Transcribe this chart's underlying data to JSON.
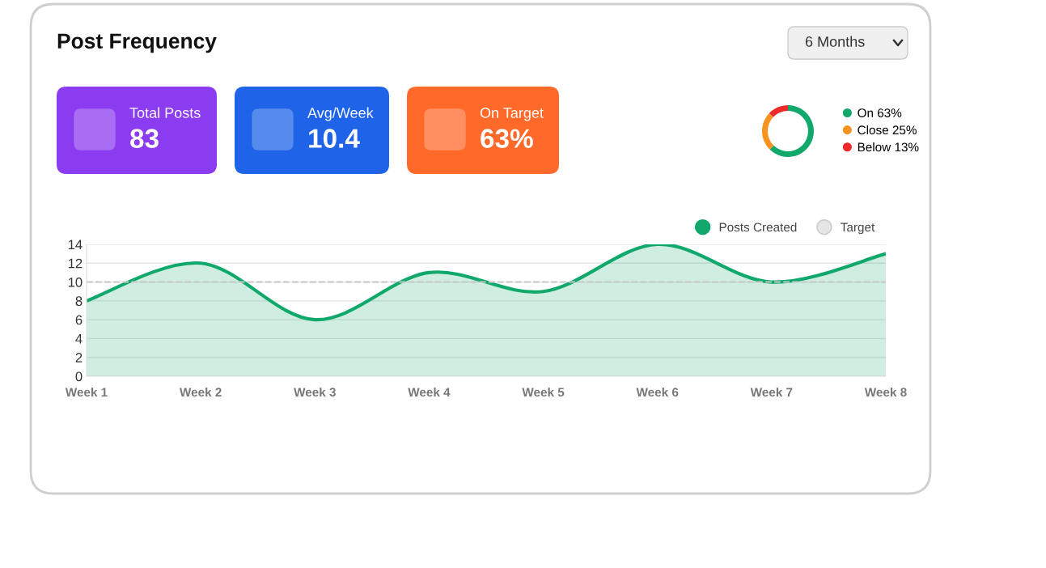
{
  "chart_data": [
    {
      "type": "other",
      "title": "Post Frequency",
      "annotations": [
        "6 Months",
        "Total Posts",
        "83",
        "Avg/Week",
        "10.4",
        "On Target",
        "63%"
      ]
    },
    {
      "type": "donut",
      "categories": [
        "On 63%",
        "Close 25%",
        "Below 13%"
      ],
      "values": [
        63,
        25,
        13
      ],
      "colors": [
        "#10a86b",
        "#f7931e",
        "#ee2a2a"
      ],
      "legend": "right"
    },
    {
      "type": "area",
      "categories": [
        "Week 1",
        "Week 2",
        "Week 3",
        "Week 4",
        "Week 5",
        "Week 6",
        "Week 7",
        "Week 8"
      ],
      "series": [
        {
          "name": "Posts Created",
          "color": "#10a86b",
          "values": [
            8,
            12,
            6,
            11,
            9,
            14,
            10,
            13
          ]
        }
      ],
      "ylim": [
        0,
        14
      ],
      "yticks": [
        0,
        2,
        4,
        6,
        8,
        10,
        12,
        14
      ],
      "grid": "y",
      "legend": "top right",
      "marker": "none",
      "ref_lines": [
        {
          "axis": "y",
          "value": 10,
          "label": "Target",
          "color": "#c8c8c8",
          "line_style": "dashed"
        }
      ]
    }
  ]
}
